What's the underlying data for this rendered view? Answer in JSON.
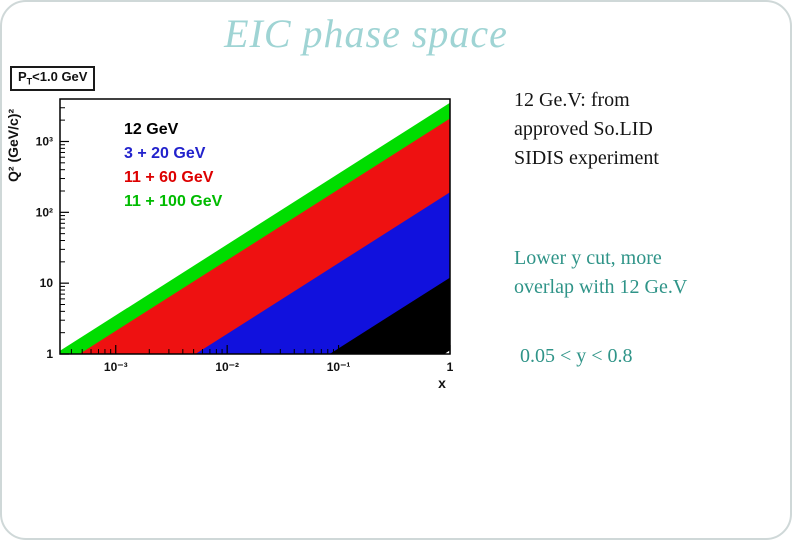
{
  "slide": {
    "title": "EIC phase space",
    "title_color": "#9fd4d4",
    "pt_label": {
      "prefix": "P",
      "sub": "T",
      "rest": "<1.0 GeV"
    },
    "annotations": {
      "solid": {
        "color": "#151515",
        "lines": [
          "12 Ge.V: from",
          "approved So.LID",
          "SIDIS experiment"
        ]
      },
      "overlap": {
        "color": "#2f9488",
        "lines": [
          "Lower y cut, more",
          "overlap with 12 Ge.V"
        ]
      },
      "ycut": {
        "color": "#2f9488",
        "lines": [
          "0.05 < y < 0.8"
        ]
      }
    }
  },
  "chart_data": {
    "type": "area",
    "title": "",
    "xlabel": "x",
    "ylabel": "Q² (GeV/c)²",
    "xscale": "log",
    "yscale": "log",
    "xlim": [
      0.000316,
      1.0
    ],
    "ylim": [
      1.0,
      3980.0
    ],
    "grid": false,
    "legend_position": "top-left-inside",
    "x_ticks": [
      {
        "v": 0.001,
        "label": "10⁻³"
      },
      {
        "v": 0.01,
        "label": "10⁻²"
      },
      {
        "v": 0.1,
        "label": "10⁻¹"
      },
      {
        "v": 1,
        "label": "1"
      }
    ],
    "y_ticks": [
      {
        "v": 1,
        "label": "1"
      },
      {
        "v": 10,
        "label": "10"
      },
      {
        "v": 100,
        "label": "10²"
      },
      {
        "v": 1000,
        "label": "10³"
      }
    ],
    "legend": [
      {
        "label": "12 GeV",
        "color": "#000000"
      },
      {
        "label": "3 + 20 GeV",
        "color": "#2222cc"
      },
      {
        "label": "11 + 60 GeV",
        "color": "#dd0000"
      },
      {
        "label": "11 + 100 GeV",
        "color": "#00bb00"
      }
    ],
    "bands": [
      {
        "name": "11 + 100 GeV",
        "color": "#00dd00",
        "note": "0.05 < y < 0.8, s = 4400 GeV^2; Q2 between 220x and 3520x",
        "points": [
          [
            0.000316,
            1
          ],
          [
            0.00455,
            1
          ],
          [
            1,
            220
          ],
          [
            1,
            3520
          ],
          [
            0.000316,
            1.11
          ]
        ]
      },
      {
        "name": "11 + 60 GeV",
        "color": "#ee1111",
        "note": "0.05 < y < 0.8, s = 2640 GeV^2; Q2 between 132x and 2112x",
        "points": [
          [
            0.000473,
            1
          ],
          [
            0.00758,
            1
          ],
          [
            1,
            132
          ],
          [
            1,
            2112
          ]
        ]
      },
      {
        "name": "12 GeV",
        "color": "#000000",
        "note": "fixed target 12 GeV; Q2 up to 18x",
        "points": [
          [
            0.0556,
            1
          ],
          [
            0.89,
            1
          ],
          [
            1,
            1.13
          ],
          [
            1,
            18
          ]
        ]
      },
      {
        "name": "3 + 20 GeV",
        "color": "#1111dd",
        "note": "0.05 < y < 0.8, s = 240 GeV^2; Q2 between 12x and 192x",
        "points": [
          [
            0.0052,
            1
          ],
          [
            0.0833,
            1
          ],
          [
            1,
            12
          ],
          [
            1,
            192
          ]
        ]
      }
    ]
  }
}
